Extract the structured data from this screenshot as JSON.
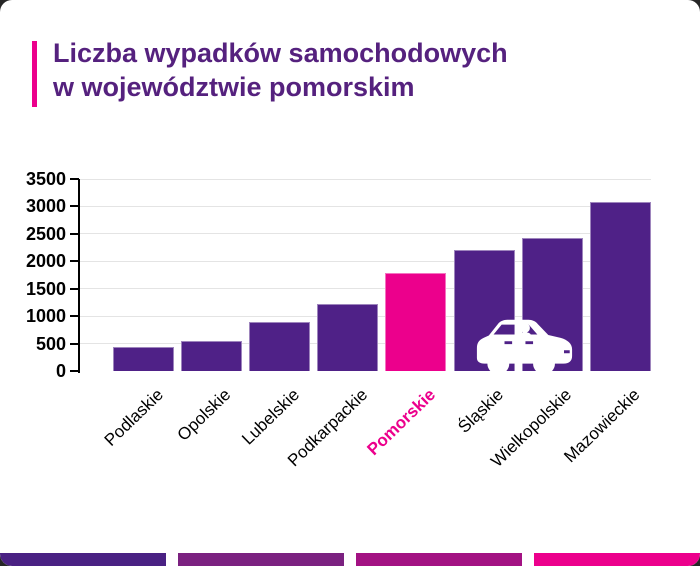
{
  "header": {
    "title_line1": "Liczba wypadków samochodowych",
    "title_line2": "w województwie pomorskim",
    "title_color": "#55217E",
    "accent_color": "#EC008C"
  },
  "chart_data": {
    "type": "bar",
    "title": "Liczba wypadków samochodowych w województwie pomorskim",
    "categories": [
      "Podlaskie",
      "Opolskie",
      "Lubelskie",
      "Podkarpackie",
      "Pomorskie",
      "Śląskie",
      "Wielkopolskie",
      "Mazowieckie"
    ],
    "values": [
      430,
      540,
      890,
      1220,
      1780,
      2200,
      2420,
      3080
    ],
    "highlight_category": "Pomorskie",
    "bar_color": "#4F2187",
    "highlight_color": "#EC008C",
    "xlabel": "",
    "ylabel": "",
    "ylim": [
      0,
      3500
    ],
    "yticks": [
      0,
      500,
      1000,
      1500,
      2000,
      2500,
      3000,
      3500
    ],
    "grid": true,
    "legend_position": "none",
    "tick_label_color": "#000000",
    "grid_color": "#e4e4e4"
  },
  "car_icon": {
    "name": "car-icon",
    "color": "#ffffff"
  },
  "footer_strip": {
    "segments": [
      {
        "color": "#4A2183"
      },
      {
        "color": "#7B2180"
      },
      {
        "color": "#A31283"
      },
      {
        "color": "#EC008C"
      }
    ]
  }
}
